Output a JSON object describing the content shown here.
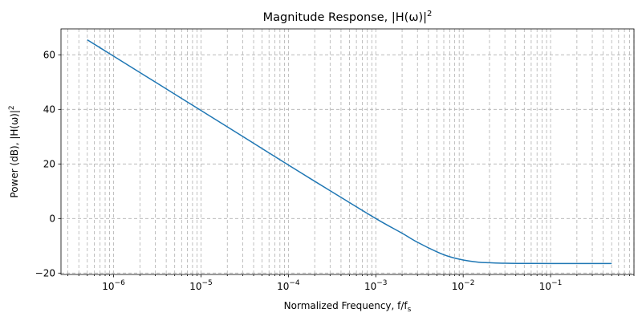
{
  "chart_data": {
    "type": "line",
    "title": "Magnitude Response, |H(ω)|",
    "title_sup": "2",
    "xlabel": "Normalized Frequency, f/f",
    "xlabel_sub": "s",
    "ylabel": "Power (dB), |H(ω)|",
    "ylabel_sup": "2",
    "xscale": "log",
    "xlim": [
      2.5e-07,
      0.9
    ],
    "ylim": [
      -20.5,
      69.5
    ],
    "grid": true,
    "x_major_ticks": [
      {
        "value": 1e-06,
        "base": "10",
        "exp": "−6"
      },
      {
        "value": 1e-05,
        "base": "10",
        "exp": "−5"
      },
      {
        "value": 0.0001,
        "base": "10",
        "exp": "−4"
      },
      {
        "value": 0.001,
        "base": "10",
        "exp": "−3"
      },
      {
        "value": 0.01,
        "base": "10",
        "exp": "−2"
      },
      {
        "value": 0.1,
        "base": "10",
        "exp": "−1"
      }
    ],
    "y_ticks": [
      {
        "value": 60,
        "label": "60"
      },
      {
        "value": 40,
        "label": "40"
      },
      {
        "value": 20,
        "label": "20"
      },
      {
        "value": 0,
        "label": "0"
      },
      {
        "value": -20,
        "label": "−20"
      }
    ],
    "series": [
      {
        "name": "|H(ω)|²",
        "color": "#1f77b4",
        "x": [
          5e-07,
          1e-06,
          3e-06,
          1e-05,
          3e-05,
          0.0001,
          0.0003,
          0.001,
          0.002,
          0.003,
          0.005,
          0.007,
          0.01,
          0.015,
          0.02,
          0.03,
          0.05,
          0.1,
          0.5
        ],
        "y": [
          65.5,
          59.5,
          50.0,
          39.6,
          30.1,
          19.6,
          10.2,
          0.0,
          -5.4,
          -8.7,
          -12.2,
          -14.0,
          -15.2,
          -16.0,
          -16.2,
          -16.4,
          -16.45,
          -16.5,
          -16.5
        ]
      }
    ]
  }
}
